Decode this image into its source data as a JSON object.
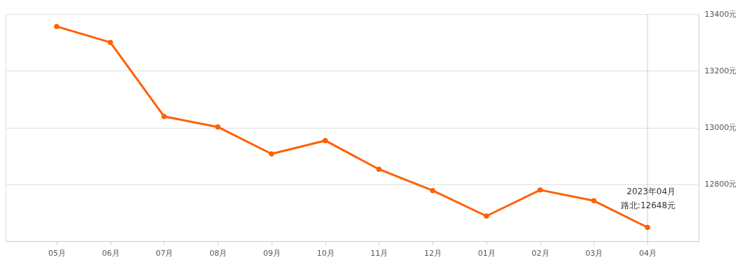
{
  "chart_data": {
    "type": "line",
    "categories": [
      "05月",
      "06月",
      "07月",
      "08月",
      "09月",
      "10月",
      "11月",
      "12月",
      "01月",
      "02月",
      "03月",
      "04月"
    ],
    "series": [
      {
        "color": "#ff6000",
        "values": [
          13356,
          13300,
          13039,
          13002,
          12907,
          12954,
          12853,
          12778,
          12688,
          12780,
          12742,
          12648
        ]
      }
    ],
    "ylim": [
      12600,
      13400
    ],
    "yticks": [
      {
        "value": 12600,
        "label": null
      },
      {
        "value": 12800,
        "label": "12800元"
      },
      {
        "value": 13000,
        "label": "13000元"
      },
      {
        "value": 13200,
        "label": "13200元"
      },
      {
        "value": 13400,
        "label": "13400元"
      }
    ],
    "grid": "y",
    "marker": "circle",
    "line_style": "solid",
    "ref_lines": [
      {
        "axis": "x",
        "value": "04月",
        "color": "#cccccc"
      }
    ],
    "annotations": [
      "2023年04月",
      "路北:12648元"
    ]
  }
}
